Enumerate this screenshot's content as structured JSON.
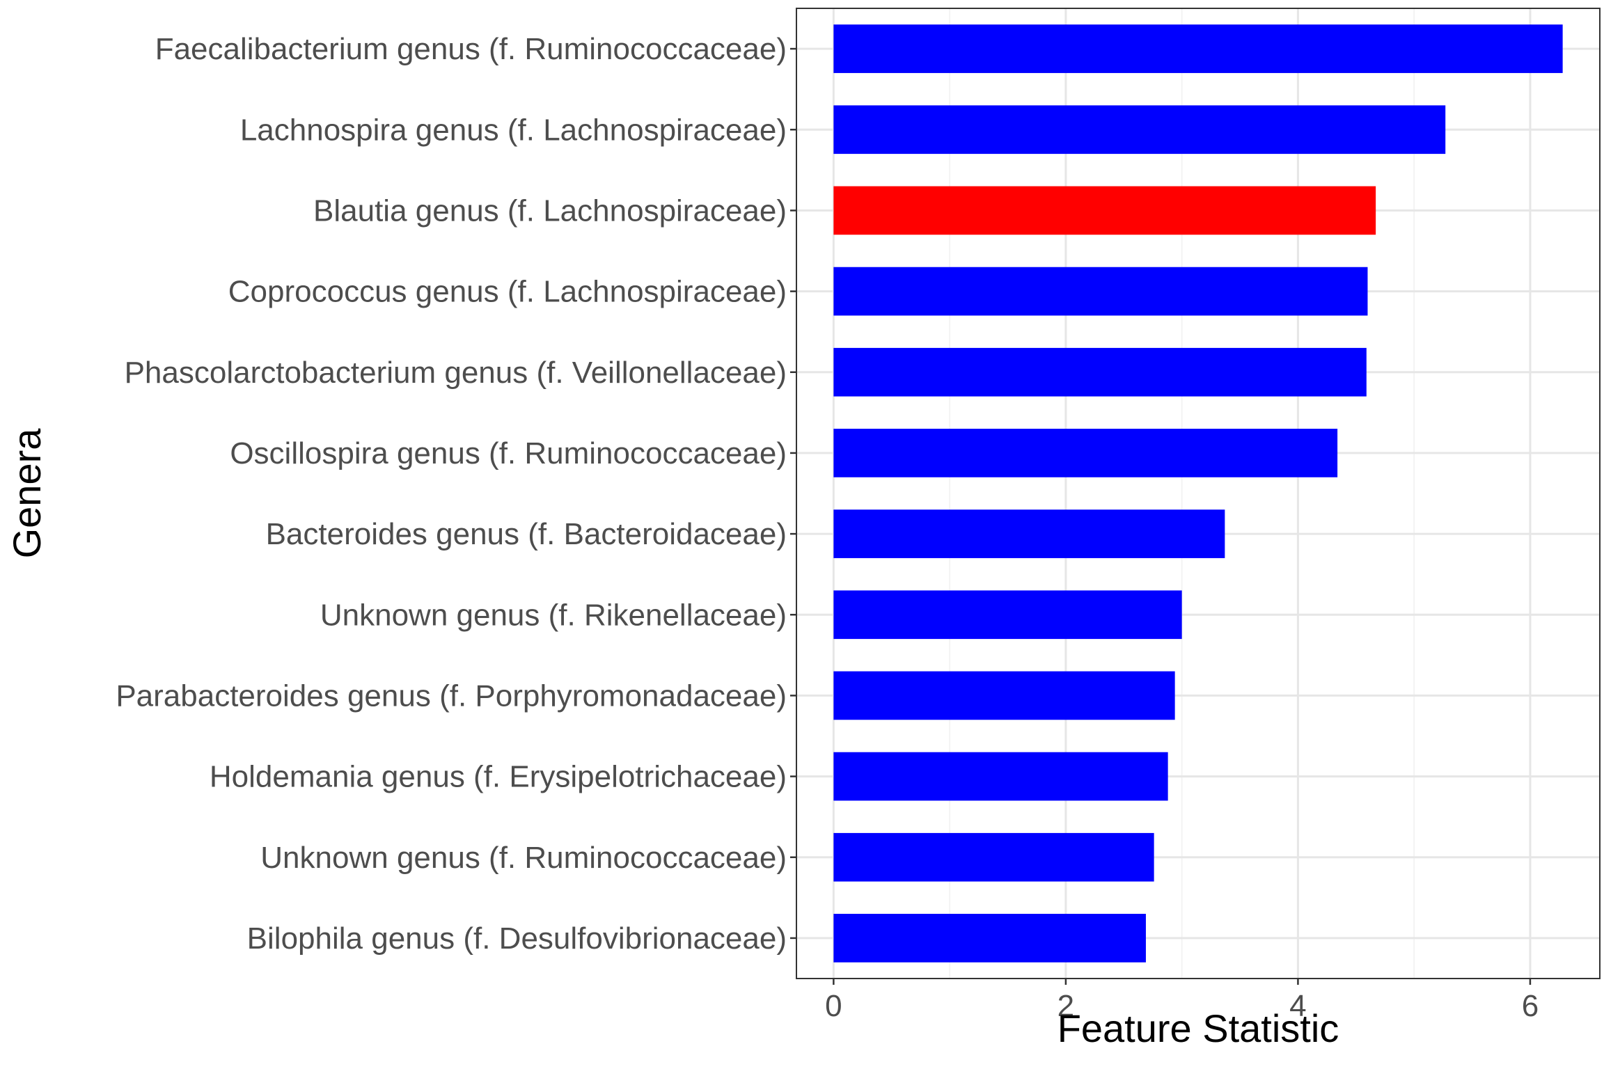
{
  "chart_data": {
    "type": "bar",
    "orientation": "horizontal",
    "categories": [
      "Faecalibacterium genus (f. Ruminococcaceae)",
      "Lachnospira genus (f. Lachnospiraceae)",
      "Blautia genus (f. Lachnospiraceae)",
      "Coprococcus genus (f. Lachnospiraceae)",
      "Phascolarctobacterium genus (f. Veillonellaceae)",
      "Oscillospira genus (f. Ruminococcaceae)",
      "Bacteroides genus (f. Bacteroidaceae)",
      "Unknown genus (f. Rikenellaceae)",
      "Parabacteroides genus (f. Porphyromonadaceae)",
      "Holdemania genus (f. Erysipelotrichaceae)",
      "Unknown genus (f. Ruminococcaceae)",
      "Bilophila genus (f. Desulfovibrionaceae)"
    ],
    "values": [
      6.28,
      5.27,
      4.67,
      4.6,
      4.59,
      4.34,
      3.37,
      3.0,
      2.94,
      2.88,
      2.76,
      2.69
    ],
    "bar_colors": [
      "#0000ff",
      "#0000ff",
      "#ff0000",
      "#0000ff",
      "#0000ff",
      "#0000ff",
      "#0000ff",
      "#0000ff",
      "#0000ff",
      "#0000ff",
      "#0000ff",
      "#0000ff"
    ],
    "title": "",
    "xlabel": "Feature Statistic",
    "ylabel": "Genera",
    "xlim": [
      -0.32,
      6.6
    ],
    "xticks": [
      0,
      2,
      4,
      6
    ],
    "grid": true,
    "legend": "none"
  }
}
